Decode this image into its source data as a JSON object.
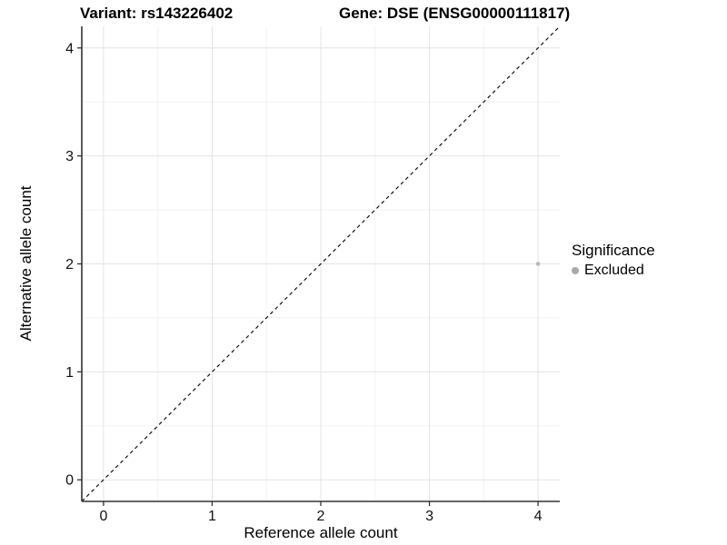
{
  "title": {
    "left": "Variant: rs143226402",
    "right": "Gene: DSE (ENSG00000111817)"
  },
  "legend": {
    "title": "Significance",
    "items": [
      {
        "label": "Excluded",
        "color": "#a9a9a9"
      }
    ]
  },
  "chart_data": {
    "type": "scatter",
    "title": "Variant: rs143226402 | Gene: DSE (ENSG00000111817)",
    "xlabel": "Reference allele count",
    "ylabel": "Alternative allele count",
    "xlim": [
      -0.2,
      4.2
    ],
    "ylim": [
      -0.2,
      4.2
    ],
    "xticks": [
      0,
      1,
      2,
      3,
      4
    ],
    "yticks": [
      0,
      1,
      2,
      3,
      4
    ],
    "minor_ticks": [
      0.5,
      1.5,
      2.5,
      3.5
    ],
    "grid": "major+minor",
    "legend_position": "right",
    "series": [
      {
        "name": "Excluded",
        "color": "#b9b9b9",
        "point_radius": 2.3,
        "points": [
          {
            "x": 4,
            "y": 2
          }
        ]
      }
    ],
    "reference_line": {
      "style": "dashed",
      "slope": 1,
      "intercept": 0,
      "color": "#000000"
    }
  },
  "colors": {
    "background": "#ffffff",
    "grid_major": "#e4e4e4",
    "grid_minor": "#f2f2f2",
    "axis_line": "#333333",
    "tick_text": "#111111",
    "title_text": "#000000"
  }
}
